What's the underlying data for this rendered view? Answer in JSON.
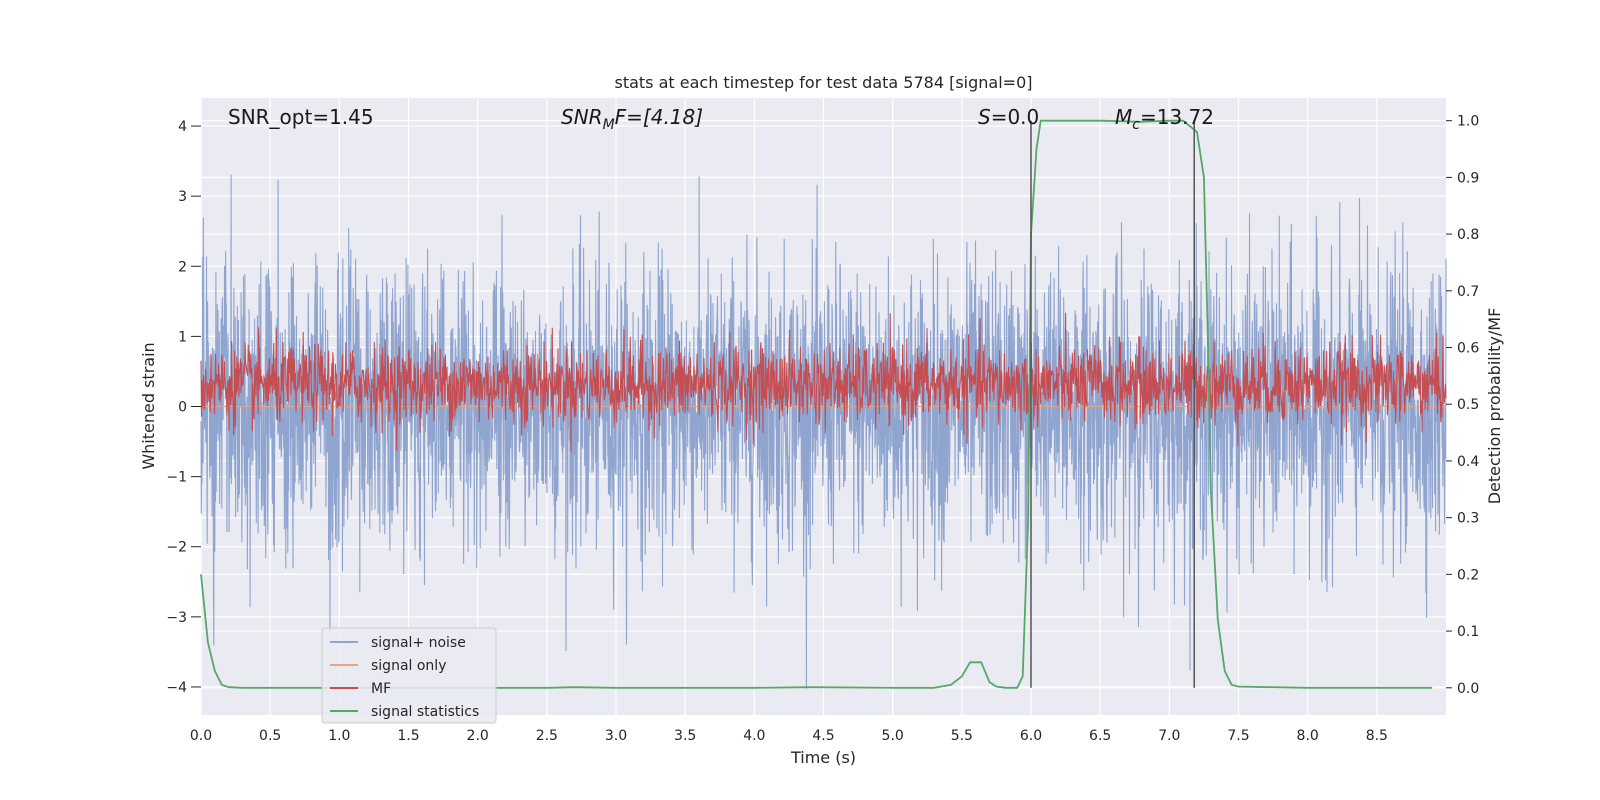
{
  "chart_data": {
    "type": "line",
    "title": "stats at each timestep for test data 5784 [signal=0]",
    "xlabel": "Time (s)",
    "ylabel_left": "Whitened strain",
    "ylabel_right": "Detection probability/MF",
    "xlim": [
      0.0,
      9.0
    ],
    "ylim_left": [
      -4.4,
      4.4
    ],
    "ylim_right": [
      -0.048,
      1.04
    ],
    "x_ticks": [
      "0.0",
      "0.5",
      "1.0",
      "1.5",
      "2.0",
      "2.5",
      "3.0",
      "3.5",
      "4.0",
      "4.5",
      "5.0",
      "5.5",
      "6.0",
      "6.5",
      "7.0",
      "7.5",
      "8.0",
      "8.5"
    ],
    "y_left_ticks": [
      "4",
      "3",
      "2",
      "1",
      "0",
      "−1",
      "−2",
      "−3",
      "−4"
    ],
    "y_right_ticks": [
      "1.0",
      "0.9",
      "0.8",
      "0.7",
      "0.6",
      "0.5",
      "0.4",
      "0.3",
      "0.2",
      "0.1",
      "0.0"
    ],
    "grid": true,
    "legend_position": "lower-left",
    "annotations": {
      "snr_opt": "SNR_opt=1.45",
      "snr_mf_main": "SNR",
      "snr_mf_sub": "M",
      "snr_mf_rest": "F=[4.18]",
      "s_main": "S",
      "s_rest": "=0.0",
      "mc_main": "M",
      "mc_sub": "c",
      "mc_rest": "=13.72"
    },
    "vertical_markers_s": [
      6.0,
      7.18
    ],
    "series": [
      {
        "name": "signal+ noise",
        "color": "#8fa5cf",
        "axis": "left",
        "kind": "noise",
        "mean": 0.0,
        "std": 1.0
      },
      {
        "name": "signal only",
        "color": "#e8a487",
        "axis": "left",
        "kind": "flat",
        "value": 0.0
      },
      {
        "name": "MF",
        "color": "#c44e52",
        "axis": "right",
        "kind": "noise",
        "mean": 0.535,
        "std": 0.035
      },
      {
        "name": "signal statistics",
        "color": "#55a868",
        "axis": "right",
        "kind": "line",
        "x": [
          0.0,
          0.05,
          0.1,
          0.15,
          0.2,
          0.3,
          0.5,
          1.0,
          2.0,
          2.5,
          2.7,
          3.0,
          4.0,
          4.4,
          5.0,
          5.3,
          5.42,
          5.5,
          5.56,
          5.64,
          5.7,
          5.75,
          5.82,
          5.9,
          5.94,
          5.98,
          6.0,
          6.04,
          6.07,
          6.1,
          6.5,
          6.8,
          7.0,
          7.1,
          7.2,
          7.25,
          7.28,
          7.3,
          7.35,
          7.4,
          7.45,
          7.5,
          8.0,
          8.5,
          8.9
        ],
        "y": [
          0.2,
          0.08,
          0.03,
          0.005,
          0.001,
          0.0,
          0.0,
          0.0,
          0.0,
          0.0,
          0.001,
          0.0,
          0.0,
          0.001,
          0.0,
          0.0,
          0.005,
          0.02,
          0.045,
          0.045,
          0.01,
          0.002,
          0.0,
          0.0,
          0.02,
          0.3,
          0.8,
          0.95,
          1.0,
          1.0,
          1.0,
          0.998,
          1.0,
          1.0,
          0.98,
          0.9,
          0.6,
          0.35,
          0.12,
          0.03,
          0.005,
          0.002,
          0.0,
          0.0,
          0.0
        ]
      }
    ]
  }
}
